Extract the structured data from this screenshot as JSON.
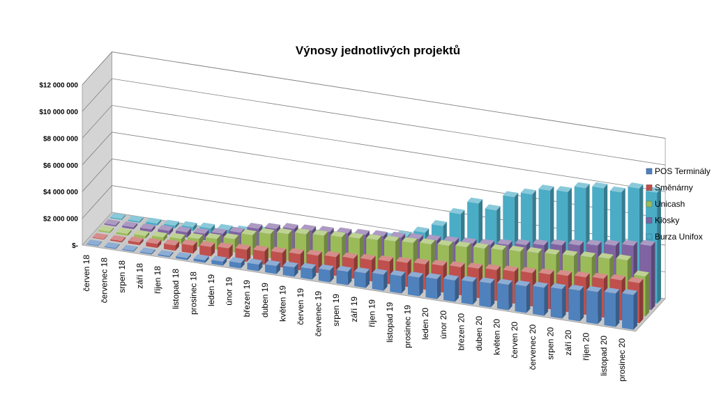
{
  "chart_data": {
    "type": "bar",
    "title": "Výnosy jednotlivých projektů",
    "xlabel": "",
    "ylabel": "",
    "ylim": [
      0,
      12000000
    ],
    "yticks": [
      "$-",
      "$2 000 000",
      "$4 000 000",
      "$6 000 000",
      "$8 000 000",
      "$10 000 000",
      "$12 000 000"
    ],
    "legend_position": "right",
    "grid": true,
    "categories": [
      "červen 18",
      "červenec 18",
      "srpen 18",
      "září 18",
      "říjen 18",
      "listopad 18",
      "prosinec 18",
      "leden 19",
      "únor 19",
      "březen 19",
      "duben 19",
      "květen 19",
      "červen 19",
      "červenec 19",
      "srpen 19",
      "září 19",
      "říjen 19",
      "listopad 19",
      "prosinec 19",
      "leden 20",
      "únor 20",
      "březen 20",
      "duben 20",
      "květen 20",
      "červen 20",
      "červenec 20",
      "srpen 20",
      "září 20",
      "říjen 20",
      "listopad 20",
      "prosinec 20"
    ],
    "series": [
      {
        "name": "POS Terminály",
        "color": "#4F81BD",
        "values": [
          50000,
          60000,
          70000,
          80000,
          100000,
          150000,
          200000,
          300000,
          400000,
          500000,
          600000,
          700000,
          800000,
          900000,
          1000000,
          1100000,
          1200000,
          1300000,
          1400000,
          1500000,
          1600000,
          1700000,
          1800000,
          1900000,
          2000000,
          2100000,
          2200000,
          2300000,
          2400000,
          2500000,
          2600000
        ]
      },
      {
        "name": "Směnárny",
        "color": "#C0504D",
        "values": [
          50000,
          100000,
          200000,
          300000,
          400000,
          600000,
          700000,
          800000,
          900000,
          1000000,
          1100000,
          1200000,
          1300000,
          1400000,
          1500000,
          1600000,
          1700000,
          1800000,
          1900000,
          2000000,
          2100000,
          2200000,
          2300000,
          2400000,
          2500000,
          2600000,
          2700000,
          2800000,
          2900000,
          3000000,
          3000000
        ]
      },
      {
        "name": "Unicash",
        "color": "#9BBB59",
        "values": [
          100000,
          150000,
          200000,
          300000,
          400000,
          600000,
          800000,
          1000000,
          1500000,
          1800000,
          2000000,
          2200000,
          2300000,
          2400000,
          2500000,
          2600000,
          2700000,
          2800000,
          2900000,
          3000000,
          3100000,
          3200000,
          3300000,
          3400000,
          3500000,
          3600000,
          3700000,
          3800000,
          3900000,
          4000000,
          3000000
        ]
      },
      {
        "name": "Kiosky",
        "color": "#8064A2",
        "values": [
          100000,
          150000,
          200000,
          300000,
          400000,
          500000,
          700000,
          1000000,
          1500000,
          1700000,
          1900000,
          2000000,
          2100000,
          2200000,
          2300000,
          2400000,
          2500000,
          2600000,
          2700000,
          2800000,
          2900000,
          3000000,
          3200000,
          3400000,
          3600000,
          3800000,
          4000000,
          4200000,
          4400000,
          4600000,
          4800000
        ]
      },
      {
        "name": "Burza Unifox",
        "color": "#4BACC6",
        "values": [
          80000,
          100000,
          150000,
          200000,
          300000,
          400000,
          500000,
          600000,
          800000,
          900000,
          1000000,
          1200000,
          1300000,
          1400000,
          1500000,
          1800000,
          2100000,
          2600000,
          3300000,
          4400000,
          5400000,
          5100000,
          6300000,
          6700000,
          7200000,
          7300000,
          7800000,
          8000000,
          7900000,
          8400000,
          8300000
        ]
      }
    ]
  }
}
